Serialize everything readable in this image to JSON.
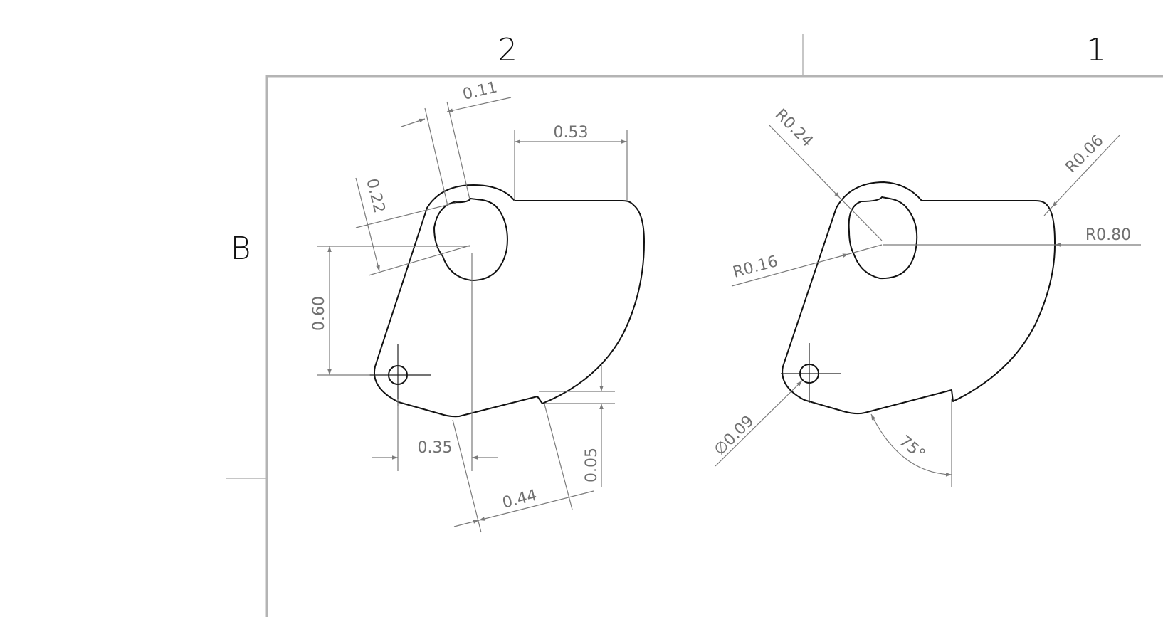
{
  "sheet": {
    "zone_columns": [
      "2",
      "1"
    ],
    "zone_rows": [
      "B"
    ]
  },
  "left_view": {
    "dimensions": [
      "0.11",
      "0.53",
      "0.22",
      "0.60",
      "0.35",
      "0.44",
      "0.05"
    ]
  },
  "right_view": {
    "dimensions": [
      "R0.24",
      "R0.06",
      "R0.80",
      "R0.16",
      "∅0.09",
      "75°"
    ]
  }
}
